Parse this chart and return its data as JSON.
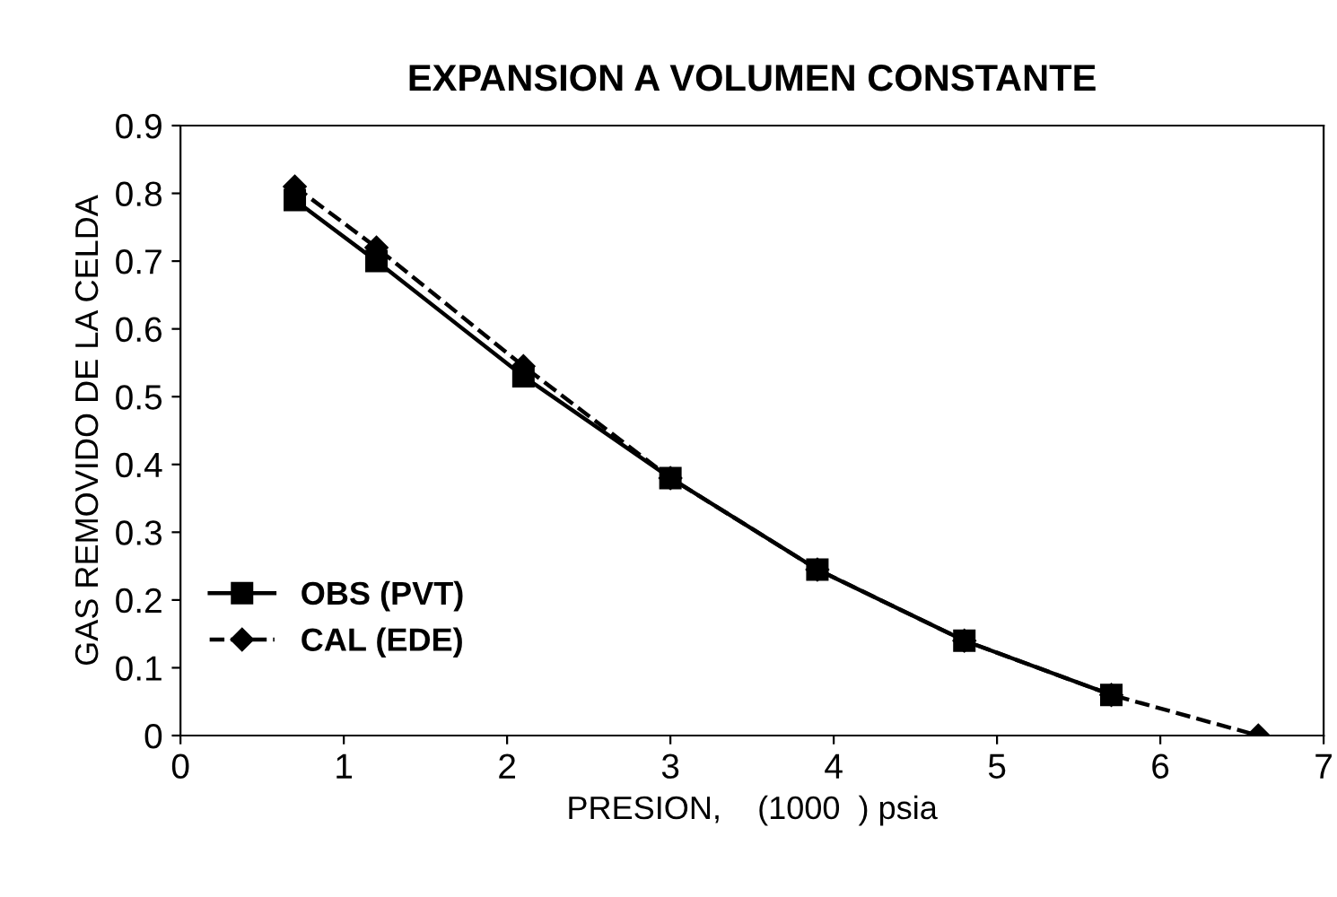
{
  "chart_data": {
    "type": "line",
    "title": "EXPANSION A VOLUMEN CONSTANTE",
    "xlabel": "PRESION,    (1000  ) psia",
    "ylabel": "GAS REMOVIDO DE LA CELDA",
    "xlim": [
      0,
      7
    ],
    "xticks": [
      0,
      1,
      2,
      3,
      4,
      5,
      6,
      7
    ],
    "ylim": [
      0,
      0.9
    ],
    "yticks": [
      0,
      0.1,
      0.2,
      0.3,
      0.4,
      0.5,
      0.6,
      0.7,
      0.8,
      0.9
    ],
    "grid": false,
    "legend": "bottom left",
    "series": [
      {
        "name": "OBS (PVT)",
        "color": "#000000",
        "marker": "square",
        "line_style": "solid",
        "x": [
          0.7,
          1.2,
          2.1,
          3.0,
          3.9,
          4.8,
          5.7
        ],
        "values": [
          0.79,
          0.7,
          0.53,
          0.38,
          0.245,
          0.14,
          0.06
        ]
      },
      {
        "name": "CAL (EDE)",
        "color": "#000000",
        "marker": "diamond",
        "line_style": "dashed",
        "x": [
          0.7,
          1.2,
          2.1,
          3.0,
          3.9,
          4.8,
          5.7,
          6.6
        ],
        "values": [
          0.81,
          0.72,
          0.545,
          0.38,
          0.245,
          0.14,
          0.06,
          0
        ]
      }
    ]
  }
}
